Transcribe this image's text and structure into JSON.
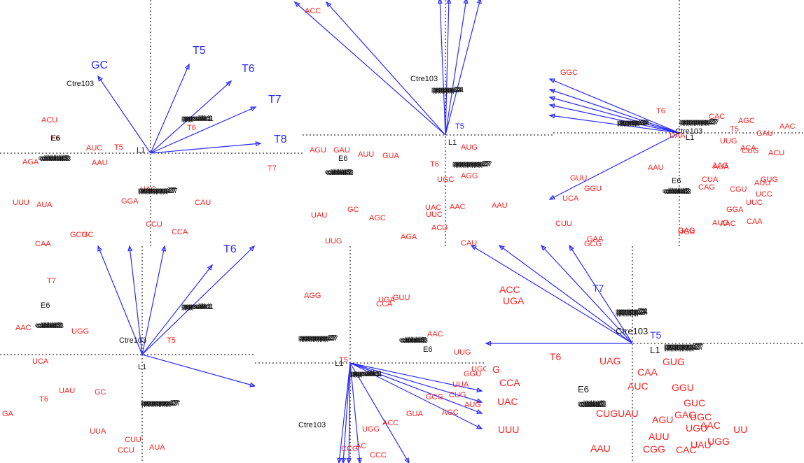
{
  "figure": {
    "colors": {
      "arrow": "#2b2bff",
      "point_label": "#ff2020",
      "text": "#111111",
      "axis": "#000000"
    }
  },
  "chart_data": [
    {
      "type": "scatter",
      "panel": "top-left",
      "grid": false,
      "axes": "dotted crosshair at origin",
      "vector_labels": [
        "GC",
        "T5",
        "T6",
        "T7",
        "T8"
      ],
      "sample_labels": [
        "Ctre103",
        "E6",
        "L1"
      ],
      "clustered_labels": [
        "pppsddc1",
        "cdddddd3",
        "pppppppp27"
      ],
      "point_labels": [
        "ACU",
        "AUC",
        "T5",
        "AGA",
        "AAU",
        "T7",
        "T6",
        "E6",
        "UAC",
        "UUU",
        "AUA",
        "CAU",
        "GGA",
        "CCU",
        "CCA",
        "GCU",
        "GC",
        "CAA"
      ]
    },
    {
      "type": "scatter",
      "panel": "top-middle",
      "grid": false,
      "axes": "dotted crosshair at origin",
      "vector_labels": [
        "T5"
      ],
      "sample_labels": [
        "Ctre103",
        "L1",
        "E6"
      ],
      "clustered_labels": [
        "pppppp24",
        "cddddd3",
        "pppppppp27"
      ],
      "point_labels": [
        "ACC",
        "AGU",
        "GAU",
        "AUU",
        "GUA",
        "AUG",
        "T6",
        "AGG",
        "UGC",
        "UAU",
        "AGC",
        "GC",
        "UAC",
        "UUC",
        "AAC",
        "AAU",
        "ACU",
        "AGA",
        "UUG",
        "CAU"
      ]
    },
    {
      "type": "scatter",
      "panel": "top-right",
      "grid": false,
      "axes": "dotted crosshair at origin",
      "vector_labels": [],
      "sample_labels": [
        "Ctre103",
        "L1",
        "E6"
      ],
      "clustered_labels": [
        "pppppp24",
        "pppppppp27",
        "cddddd3"
      ],
      "point_labels": [
        "GGC",
        "T6",
        "CAC",
        "AGC",
        "AAC",
        "UAA",
        "T5",
        "UUG",
        "GAU",
        "CUG",
        "ACU",
        "ACA",
        "AAG",
        "AUA",
        "AAU",
        "CUA",
        "CAG",
        "GUU",
        "GGU",
        "UCA",
        "CGU",
        "AUU",
        "GUG",
        "UCC",
        "UUC",
        "CUU",
        "GGA",
        "AAC",
        "CAA",
        "GAG",
        "UGU",
        "AUG",
        "GAA",
        "GCG"
      ]
    },
    {
      "type": "scatter",
      "panel": "bottom-left",
      "grid": false,
      "axes": "dotted crosshair at origin",
      "vector_labels": [
        "T6"
      ],
      "sample_labels": [
        "E6",
        "Ctre103",
        "L1"
      ],
      "clustered_labels": [
        "pppsddc1",
        "cddddd3",
        "pppppppp27"
      ],
      "point_labels": [
        "T7",
        "AAC",
        "UGG",
        "T5",
        "UCA",
        "UAU",
        "GC",
        "T6",
        "UUA",
        "CUU",
        "CCU",
        "AUA",
        "GA"
      ]
    },
    {
      "type": "scatter",
      "panel": "bottom-middle",
      "grid": false,
      "axes": "dotted crosshair at origin",
      "vector_labels": [],
      "sample_labels": [
        "E6",
        "L1",
        "Ctre103"
      ],
      "clustered_labels": [
        "pppppppp27",
        "cddddd3",
        "pppsddc1"
      ],
      "point_labels": [
        "AGG",
        "UGA",
        "GUU",
        "CCA",
        "AAC",
        "UUG",
        "T5",
        "UGC",
        "GGU",
        "UUA",
        "GCG",
        "CUG",
        "AUG",
        "AGC",
        "GUA",
        "ACC",
        "UGG",
        "CCG",
        "AC",
        "CCC"
      ]
    },
    {
      "type": "scatter",
      "panel": "bottom-right",
      "grid": false,
      "axes": "dotted crosshair at origin",
      "vector_labels": [
        "T7",
        "T5"
      ],
      "sample_labels": [
        "Ctre103",
        "L1",
        "E6"
      ],
      "clustered_labels": [
        "pppppp24",
        "pppppppp27",
        "cddddd3"
      ],
      "point_labels": [
        "ACC",
        "UGA",
        "G",
        "CCA",
        "UAC",
        "T6",
        "UAG",
        "CAA",
        "GUG",
        "AUC",
        "GGU",
        "GUC",
        "CUGUAU",
        "GAG",
        "AGU",
        "UGC",
        "AAC",
        "AUU",
        "UUU",
        "UGU",
        "UU",
        "UGG",
        "UAU",
        "CGG",
        "AAU",
        "CAC"
      ]
    }
  ]
}
